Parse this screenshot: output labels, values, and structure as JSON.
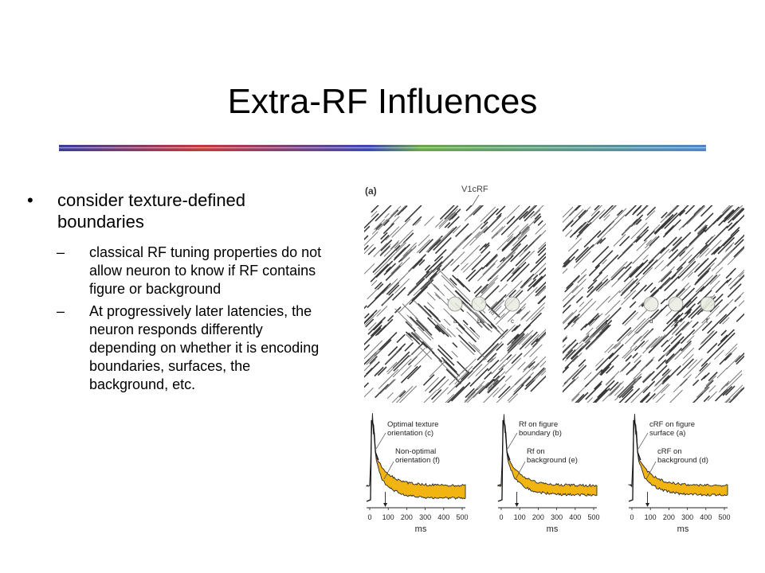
{
  "slide": {
    "title": "Extra-RF Influences",
    "bullets": [
      {
        "text": "consider texture-defined boundaries",
        "sub": [
          "classical RF tuning properties do not allow neuron to know if RF contains figure or background",
          "At progressively later latencies, the neuron responds differently depending on whether it is encoding boundaries, surfaces, the background, etc."
        ]
      }
    ]
  },
  "figure": {
    "panel_label": "(a)",
    "rf_label": "V1cRF",
    "circles_left": [
      "a",
      "b",
      "c"
    ],
    "circles_right": [
      "d",
      "e",
      "f"
    ],
    "plots": [
      {
        "top_label": [
          "Optimal texture",
          "orientation (c)"
        ],
        "bottom_label": [
          "Non-optimal",
          "orientation (f)"
        ]
      },
      {
        "top_label": [
          "Rf on figure",
          "boundary (b)"
        ],
        "bottom_label": [
          "Rf on",
          "background (e)"
        ]
      },
      {
        "top_label": [
          "cRF on figure",
          "surface (a)"
        ],
        "bottom_label": [
          "cRF on",
          "background (d)"
        ]
      }
    ],
    "x_ticks": [
      "0",
      "100",
      "200",
      "300",
      "400",
      "500"
    ],
    "x_label": "ms"
  }
}
